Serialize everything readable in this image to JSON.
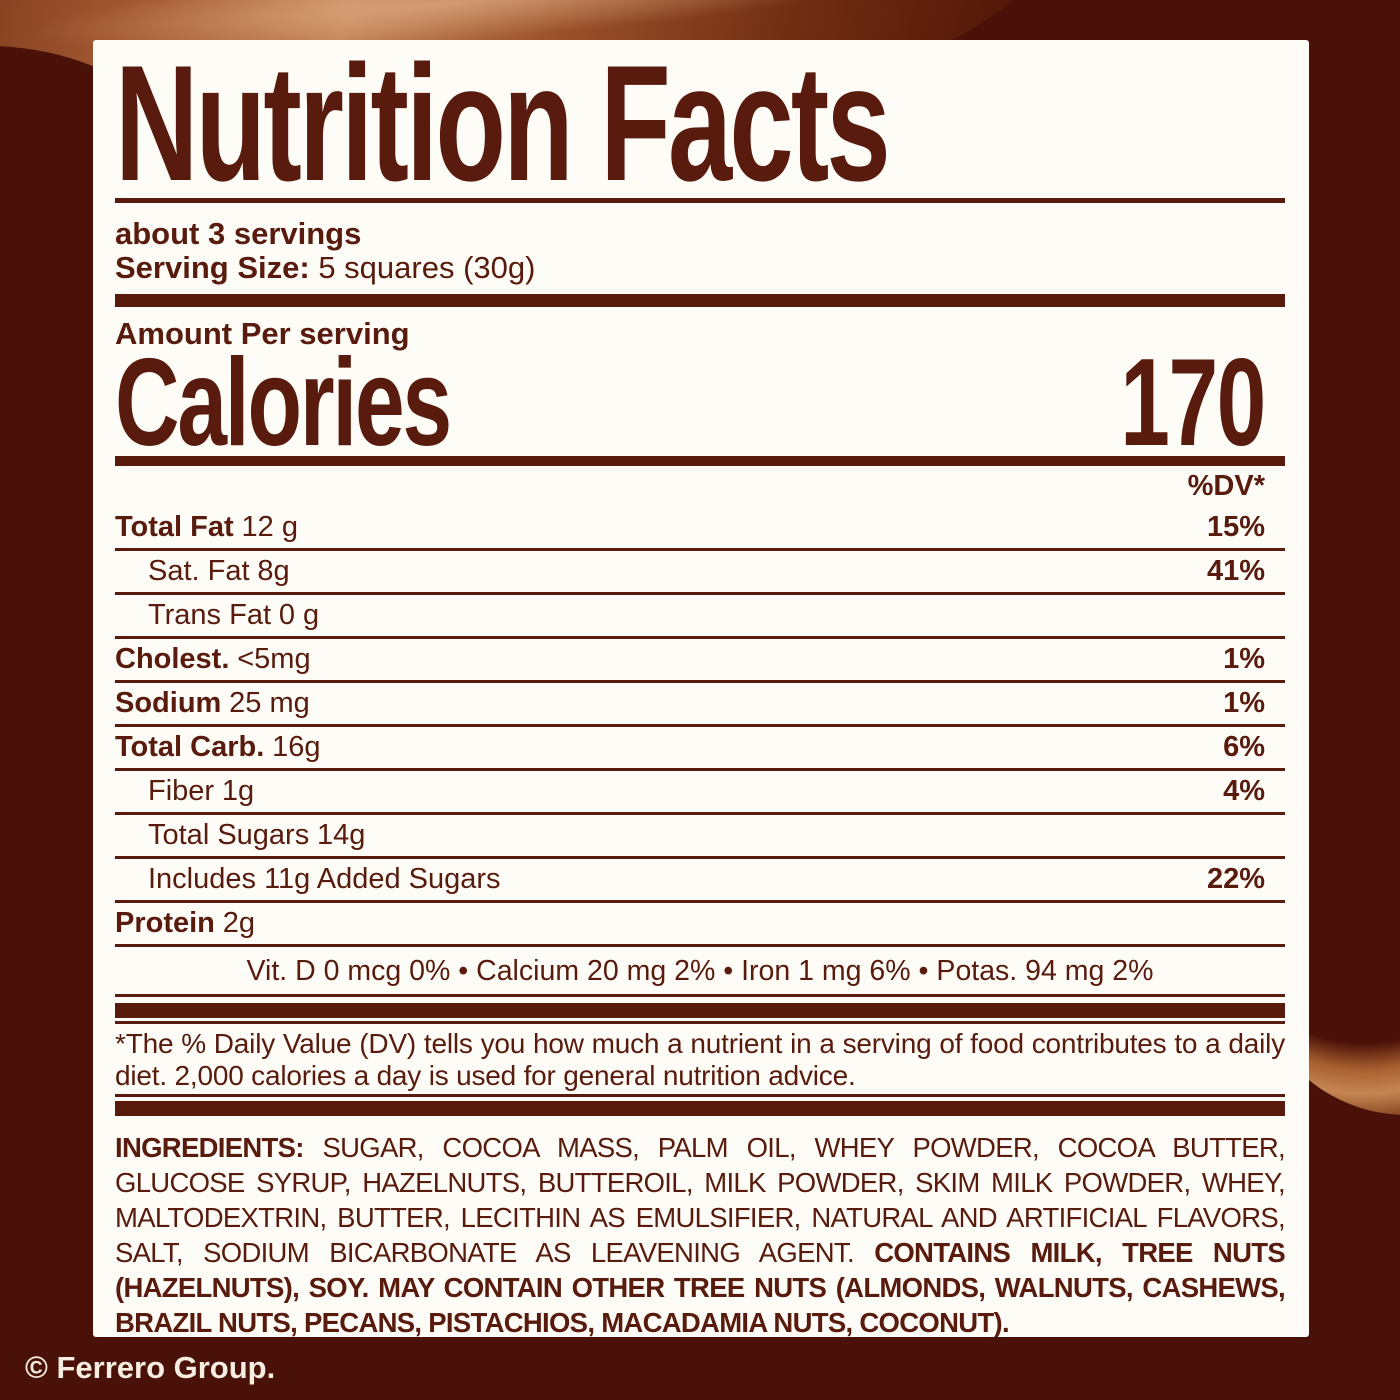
{
  "label": {
    "title": "Nutrition Facts",
    "servings_line": "about 3 servings",
    "serving_size_label": "Serving Size:",
    "serving_size_value": "5 squares (30g)",
    "amount_per": "Amount Per serving",
    "calories_label": "Calories",
    "calories_value": "170",
    "dv_header": "%DV*",
    "rows": [
      {
        "name": "Total Fat",
        "amount": "12 g",
        "pct": "15%"
      },
      {
        "name": "Sat. Fat",
        "amount": "8g",
        "pct": "41%"
      },
      {
        "name": "Trans Fat",
        "amount": "0 g",
        "pct": ""
      },
      {
        "name": "Cholest.",
        "amount": "<5mg",
        "pct": "1%"
      },
      {
        "name": "Sodium",
        "amount": "25 mg",
        "pct": "1%"
      },
      {
        "name": "Total Carb.",
        "amount": "16g",
        "pct": "6%"
      },
      {
        "name": "Fiber",
        "amount": "1g",
        "pct": "4%"
      },
      {
        "name": "Total Sugars",
        "amount": "14g",
        "pct": ""
      },
      {
        "name": "Includes 11g Added Sugars",
        "amount": "",
        "pct": "22%"
      },
      {
        "name": "Protein",
        "amount": "2g",
        "pct": ""
      }
    ],
    "vitamins_line": "Vit. D 0 mcg 0% • Calcium 20 mg 2% • Iron 1 mg 6% • Potas. 94 mg 2%",
    "footnote": "*The % Daily Value (DV) tells you how much a nutrient in a serving of food contributes to a daily diet. 2,000 calories a day is used for general nutrition advice.",
    "ingredients_label": "INGREDIENTS:",
    "ingredients_text": "SUGAR, COCOA MASS, PALM OIL, WHEY POWDER, COCOA BUTTER, GLUCOSE SYRUP, HAZELNUTS, BUTTEROIL, MILK POWDER, SKIM MILK POWDER, WHEY, MALTODEXTRIN, BUTTER, LECITHIN AS EMULSIFIER, NATURAL AND ARTIFICIAL FLAVORS, SALT, SODIUM BICARBONATE AS LEAVENING AGENT.",
    "allergen_text": "CONTAINS MILK, TREE NUTS (HAZELNUTS), SOY. MAY CONTAIN OTHER TREE NUTS (ALMONDS, WALNUTS, CASHEWS, BRAZIL NUTS, PECANS, PISTACHIOS, MACADAMIA NUTS, COCONUT).",
    "copyright": "© Ferrero Group."
  },
  "colors": {
    "background": "#4A1108",
    "panel": "#FDFCF6",
    "ink": "#581B0D",
    "swirl_light": "#C28259",
    "swirl_mid": "#A75D35",
    "copyright_text": "#F7EEE2"
  }
}
